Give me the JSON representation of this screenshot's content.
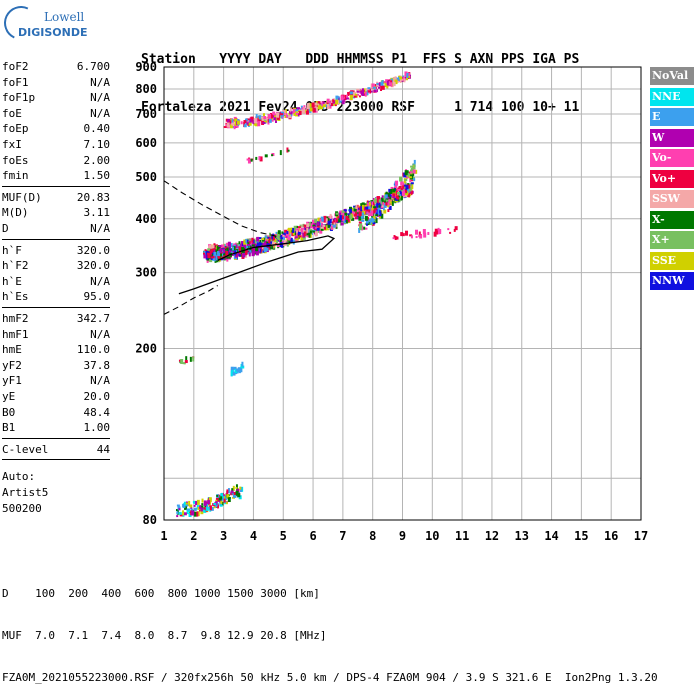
{
  "logo": {
    "line1": "Lowell",
    "line2": "DIGISONDE"
  },
  "header": {
    "line1": "Station   YYYY DAY   DDD HHMMSS P1  FFS S AXN PPS IGA PS",
    "line2": "Fortaleza 2021 Fev24 055 223000 RSF     1 714 100 10+ 11"
  },
  "params": {
    "group1": [
      {
        "k": "foF2",
        "v": "6.700"
      },
      {
        "k": "foF1",
        "v": "N/A"
      },
      {
        "k": "foF1p",
        "v": "N/A"
      },
      {
        "k": "foE",
        "v": "N/A"
      },
      {
        "k": "foEp",
        "v": "0.40"
      },
      {
        "k": "fxI",
        "v": "7.10"
      },
      {
        "k": "foEs",
        "v": "2.00"
      },
      {
        "k": "fmin",
        "v": "1.50"
      }
    ],
    "group2": [
      {
        "k": "MUF(D)",
        "v": "20.83"
      },
      {
        "k": "M(D)",
        "v": "3.11"
      },
      {
        "k": "D",
        "v": "N/A"
      }
    ],
    "group3": [
      {
        "k": "h`F",
        "v": "320.0"
      },
      {
        "k": "h`F2",
        "v": "320.0"
      },
      {
        "k": "h`E",
        "v": "N/A"
      },
      {
        "k": "h`Es",
        "v": "95.0"
      }
    ],
    "group4": [
      {
        "k": "hmF2",
        "v": "342.7"
      },
      {
        "k": "hmF1",
        "v": "N/A"
      },
      {
        "k": "hmE",
        "v": "110.0"
      },
      {
        "k": "yF2",
        "v": "37.8"
      },
      {
        "k": "yF1",
        "v": "N/A"
      },
      {
        "k": "yE",
        "v": "20.0"
      },
      {
        "k": "B0",
        "v": "48.4"
      },
      {
        "k": "B1",
        "v": "1.00"
      }
    ],
    "group5": [
      {
        "k": "C-level",
        "v": "44"
      }
    ],
    "auto": {
      "label": "Auto:",
      "artist": "Artist5",
      "code": "500200"
    }
  },
  "legend": [
    {
      "label": "NoVal",
      "color": "#8c8c8c"
    },
    {
      "label": "NNE",
      "color": "#00e5ee"
    },
    {
      "label": "E",
      "color": "#3ca0ee"
    },
    {
      "label": "W",
      "color": "#b000b0"
    },
    {
      "label": "Vo-",
      "color": "#ff3fb0"
    },
    {
      "label": "Vo+",
      "color": "#ee0040"
    },
    {
      "label": "SSW",
      "color": "#f4a8a8"
    },
    {
      "label": "X-",
      "color": "#007800"
    },
    {
      "label": "X+",
      "color": "#78c060"
    },
    {
      "label": "SSE",
      "color": "#d0d000"
    },
    {
      "label": "NNW",
      "color": "#1010e0"
    }
  ],
  "footer": {
    "line1": "D    100  200  400  600  800 1000 1500 3000 [km]",
    "line2": "MUF  7.0  7.1  7.4  8.0  8.7  9.8 12.9 20.8 [MHz]",
    "line3": "FZA0M_2021055223000.RSF / 320fx256h 50 kHz 5.0 km / DPS-4 FZA0M 904 / 3.9 S 321.6 E  Ion2Png 1.3.20"
  },
  "chart_data": {
    "type": "scatter",
    "xlim": [
      1,
      17
    ],
    "ylim": [
      80,
      900
    ],
    "y_scale": "log",
    "grid": true,
    "x_ticks": [
      1,
      2,
      3,
      4,
      5,
      6,
      7,
      8,
      9,
      10,
      11,
      12,
      13,
      14,
      15,
      16,
      17
    ],
    "y_ticks": [
      80,
      100,
      200,
      300,
      400,
      500,
      600,
      700,
      800,
      900
    ],
    "y_tick_labels": [
      "80",
      "",
      "200",
      "300",
      "400",
      "500",
      "600",
      "700",
      "800",
      "900"
    ],
    "profile_solid": [
      [
        2.8,
        320
      ],
      [
        3.2,
        330
      ],
      [
        4.0,
        343
      ],
      [
        5.0,
        350
      ],
      [
        5.8,
        356
      ],
      [
        6.5,
        365
      ],
      [
        6.7,
        360
      ],
      [
        6.3,
        340
      ],
      [
        5.5,
        335
      ],
      [
        4.5,
        318
      ],
      [
        3.5,
        300
      ],
      [
        2.5,
        283
      ],
      [
        2.0,
        275
      ],
      [
        1.5,
        268
      ]
    ],
    "profile_dashed_upper": [
      [
        1,
        490
      ],
      [
        1.6,
        460
      ],
      [
        2.3,
        430
      ],
      [
        3.0,
        405
      ],
      [
        3.6,
        385
      ],
      [
        4.2,
        372
      ],
      [
        4.8,
        364
      ]
    ],
    "profile_dashed_lower": [
      [
        1,
        240
      ],
      [
        1.5,
        250
      ],
      [
        2.0,
        262
      ],
      [
        2.5,
        272
      ],
      [
        2.8,
        280
      ]
    ],
    "scatter_clusters": [
      {
        "name": "F2 trace O",
        "xr": [
          2.4,
          9.3
        ],
        "y0": 332,
        "y1": 470,
        "spread": 14,
        "n": 900,
        "colors": [
          "#ee0040",
          "#ff3fb0",
          "#b000b0",
          "#3ca0ee",
          "#007800",
          "#1010e0",
          "#d0d000",
          "#78c060",
          "#f4a8a8"
        ]
      },
      {
        "name": "F2 near low",
        "xr": [
          2.3,
          4.5
        ],
        "y0": 330,
        "y1": 345,
        "spread": 8,
        "n": 260,
        "colors": [
          "#ee0040",
          "#b000b0",
          "#007800",
          "#1010e0",
          "#3ca0ee"
        ]
      },
      {
        "name": "F2 upper",
        "xr": [
          7.5,
          9.4
        ],
        "y0": 400,
        "y1": 520,
        "spread": 25,
        "n": 230,
        "colors": [
          "#ee0040",
          "#1010e0",
          "#007800",
          "#d0d000",
          "#3ca0ee",
          "#ff3fb0",
          "#78c060"
        ]
      },
      {
        "name": "multi-hop",
        "xr": [
          3.0,
          9.2
        ],
        "y0": 665,
        "y1": 860,
        "spread": 14,
        "n": 420,
        "colors": [
          "#3ca0ee",
          "#f4a8a8",
          "#ff3fb0",
          "#b000b0",
          "#ee0040",
          "#d0d000"
        ]
      },
      {
        "name": "mid trace",
        "xr": [
          3.6,
          5.2
        ],
        "y0": 545,
        "y1": 580,
        "spread": 4,
        "n": 14,
        "colors": [
          "#ff3fb0",
          "#ee0040",
          "#007800"
        ]
      },
      {
        "name": "Es layer",
        "xr": [
          1.4,
          3.6
        ],
        "y0": 84,
        "y1": 94,
        "spread": 3,
        "n": 160,
        "colors": [
          "#3ca0ee",
          "#007800",
          "#d0d000",
          "#ee0040",
          "#b000b0",
          "#00e5ee"
        ]
      },
      {
        "name": "Es echo",
        "xr": [
          3.2,
          3.6
        ],
        "y0": 176,
        "y1": 182,
        "spread": 3,
        "n": 24,
        "colors": [
          "#3ca0ee",
          "#00e5ee"
        ]
      },
      {
        "name": "Es 2",
        "xr": [
          1.5,
          2.0
        ],
        "y0": 186,
        "y1": 192,
        "spread": 4,
        "n": 10,
        "colors": [
          "#ee0040",
          "#007800",
          "#78c060"
        ]
      },
      {
        "name": "scattered high",
        "xr": [
          8.6,
          11
        ],
        "y0": 365,
        "y1": 380,
        "spread": 5,
        "n": 30,
        "colors": [
          "#ff3fb0",
          "#ee0040"
        ]
      }
    ]
  }
}
